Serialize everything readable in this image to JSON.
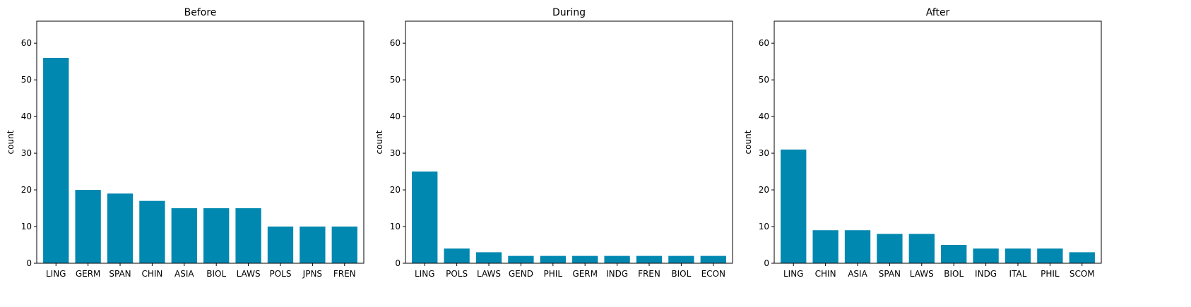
{
  "colors": {
    "bar": "#0088b0",
    "axis": "#000000",
    "background": "#ffffff"
  },
  "chart_data": [
    {
      "type": "bar",
      "title": "Before",
      "xlabel": "",
      "ylabel": "count",
      "ylim": [
        0,
        66
      ],
      "yticks": [
        0,
        10,
        20,
        30,
        40,
        50,
        60
      ],
      "grid": false,
      "categories": [
        "LING",
        "GERM",
        "SPAN",
        "CHIN",
        "ASIA",
        "BIOL",
        "LAWS",
        "POLS",
        "JPNS",
        "FREN"
      ],
      "values": [
        56,
        20,
        19,
        17,
        15,
        15,
        15,
        10,
        10,
        10
      ]
    },
    {
      "type": "bar",
      "title": "During",
      "xlabel": "",
      "ylabel": "count",
      "ylim": [
        0,
        66
      ],
      "yticks": [
        0,
        10,
        20,
        30,
        40,
        50,
        60
      ],
      "grid": false,
      "categories": [
        "LING",
        "POLS",
        "LAWS",
        "GEND",
        "PHIL",
        "GERM",
        "INDG",
        "FREN",
        "BIOL",
        "ECON"
      ],
      "values": [
        25,
        4,
        3,
        2,
        2,
        2,
        2,
        2,
        2,
        2
      ]
    },
    {
      "type": "bar",
      "title": "After",
      "xlabel": "",
      "ylabel": "count",
      "ylim": [
        0,
        66
      ],
      "yticks": [
        0,
        10,
        20,
        30,
        40,
        50,
        60
      ],
      "grid": false,
      "categories": [
        "LING",
        "CHIN",
        "ASIA",
        "SPAN",
        "LAWS",
        "BIOL",
        "INDG",
        "ITAL",
        "PHIL",
        "SCOM"
      ],
      "values": [
        31,
        9,
        9,
        8,
        8,
        5,
        4,
        4,
        4,
        3
      ]
    }
  ]
}
